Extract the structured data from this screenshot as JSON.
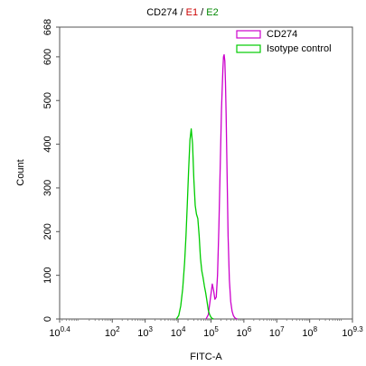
{
  "chart_data": {
    "type": "line",
    "title_parts": [
      {
        "text": "CD274",
        "color": "#000000"
      },
      {
        "text": " / ",
        "color": "#000000"
      },
      {
        "text": "E1",
        "color": "#cc0000"
      },
      {
        "text": " / ",
        "color": "#000000"
      },
      {
        "text": "E2",
        "color": "#008800"
      }
    ],
    "xlabel": "FITC-A",
    "ylabel": "Count",
    "x_scale": "log",
    "xlim": [
      0.4,
      9.3
    ],
    "ylim": [
      0,
      668
    ],
    "x_ticks": [
      {
        "base": "10",
        "exp": "0.4",
        "pos": 0.4
      },
      {
        "base": "10",
        "exp": "2",
        "pos": 2
      },
      {
        "base": "10",
        "exp": "3",
        "pos": 3
      },
      {
        "base": "10",
        "exp": "4",
        "pos": 4
      },
      {
        "base": "10",
        "exp": "5",
        "pos": 5
      },
      {
        "base": "10",
        "exp": "6",
        "pos": 6
      },
      {
        "base": "10",
        "exp": "7",
        "pos": 7
      },
      {
        "base": "10",
        "exp": "8",
        "pos": 8
      },
      {
        "base": "10",
        "exp": "9.3",
        "pos": 9.3
      }
    ],
    "y_ticks": [
      {
        "label": "0",
        "value": 0
      },
      {
        "label": "100",
        "value": 100
      },
      {
        "label": "200",
        "value": 200
      },
      {
        "label": "300",
        "value": 300
      },
      {
        "label": "400",
        "value": 400
      },
      {
        "label": "500",
        "value": 500
      },
      {
        "label": "600",
        "value": 600
      },
      {
        "label": "668",
        "value": 668
      }
    ],
    "legend_position": "top-right",
    "series": [
      {
        "name": "CD274",
        "color": "#cc00cc",
        "x_log10": [
          4.85,
          4.92,
          4.98,
          5.04,
          5.08,
          5.12,
          5.16,
          5.2,
          5.24,
          5.28,
          5.32,
          5.36,
          5.38,
          5.4,
          5.42,
          5.44,
          5.46,
          5.48,
          5.5,
          5.52,
          5.56,
          5.6,
          5.64,
          5.68,
          5.72,
          5.76,
          5.8
        ],
        "y": [
          0,
          10,
          45,
          80,
          65,
          45,
          50,
          100,
          210,
          350,
          480,
          570,
          600,
          605,
          590,
          540,
          470,
          380,
          280,
          190,
          90,
          40,
          18,
          8,
          3,
          1,
          0
        ]
      },
      {
        "name": "Isotype control",
        "color": "#00cc00",
        "x_log10": [
          3.95,
          4.02,
          4.08,
          4.14,
          4.2,
          4.24,
          4.28,
          4.32,
          4.36,
          4.4,
          4.44,
          4.48,
          4.52,
          4.56,
          4.6,
          4.64,
          4.68,
          4.72,
          4.76,
          4.8,
          4.84,
          4.88,
          4.92,
          4.96,
          5.0,
          5.04,
          5.08
        ],
        "y": [
          0,
          8,
          30,
          70,
          130,
          190,
          260,
          340,
          410,
          435,
          400,
          320,
          260,
          240,
          230,
          190,
          140,
          110,
          95,
          75,
          60,
          40,
          20,
          10,
          4,
          1,
          0
        ]
      }
    ]
  }
}
